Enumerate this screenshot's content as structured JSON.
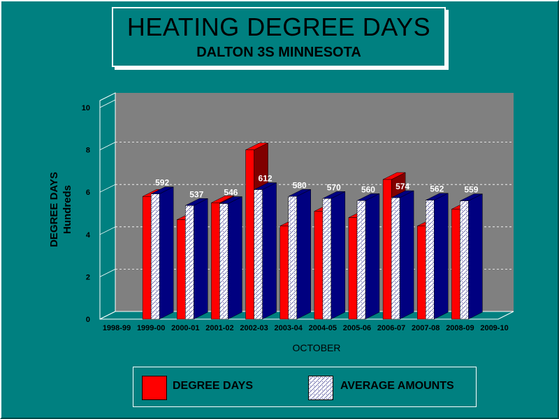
{
  "title": "HEATING DEGREE DAYS",
  "subtitle": "DALTON 3S MINNESOTA",
  "colors": {
    "background": "#008080",
    "plot": "#808080",
    "degree_days": "#ff0000",
    "degree_days_side": "#800000",
    "average": "#ffffff",
    "average_side": "#000080"
  },
  "chart_data": {
    "type": "bar",
    "title": "HEATING DEGREE DAYS",
    "subtitle": "DALTON 3S MINNESOTA",
    "xlabel": "OCTOBER",
    "ylabel": "DEGREE DAYS",
    "ylabel_unit": "Hundreds",
    "ylim": [
      0,
      10
    ],
    "yticks": [
      "0",
      "2",
      "4",
      "6",
      "8",
      "10"
    ],
    "categories": [
      "1998-99",
      "1999-00",
      "2000-01",
      "2001-02",
      "2002-03",
      "2003-04",
      "2004-05",
      "2005-06",
      "2006-07",
      "2007-08",
      "2008-09",
      "2009-10"
    ],
    "series": [
      {
        "name": "DEGREE DAYS",
        "values": [
          null,
          5.8,
          4.7,
          5.5,
          8.0,
          4.4,
          5.1,
          4.8,
          6.6,
          4.4,
          5.2,
          null
        ]
      },
      {
        "name": "AVERAGE AMOUNTS",
        "values": [
          null,
          5.92,
          5.37,
          5.46,
          6.12,
          5.8,
          5.7,
          5.6,
          5.74,
          5.62,
          5.59,
          null
        ],
        "labels": [
          "",
          "592",
          "537",
          "546",
          "612",
          "580",
          "570",
          "560",
          "574",
          "562",
          "559",
          ""
        ]
      }
    ],
    "grid": true,
    "legend_position": "bottom"
  }
}
